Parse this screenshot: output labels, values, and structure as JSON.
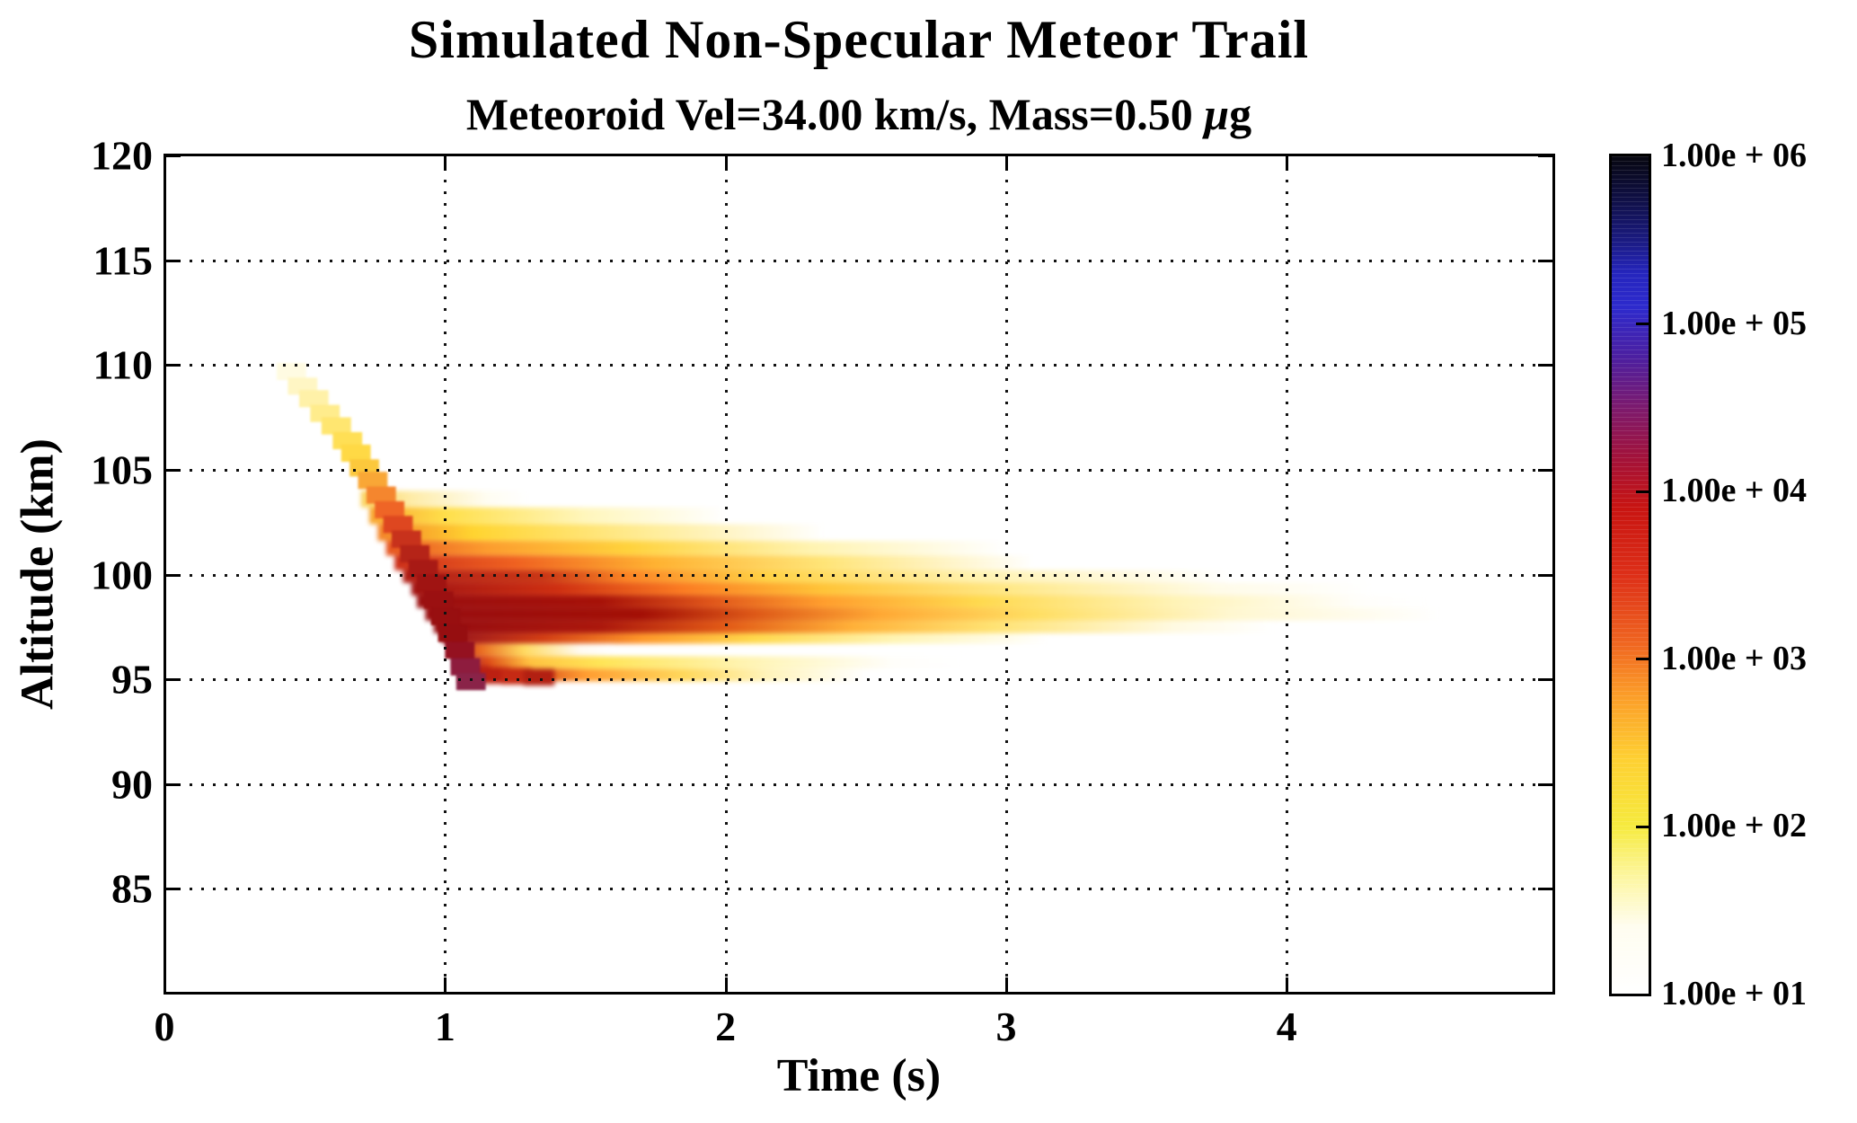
{
  "chart_data": {
    "type": "heatmap",
    "title": "Simulated Non-Specular Meteor Trail",
    "subtitle_pre": "Meteoroid Vel=34.00 km/s, Mass=0.50 ",
    "subtitle_mu": "μ",
    "subtitle_post": "g",
    "xlabel": "Time (s)",
    "ylabel": "Altitude (km)",
    "xlim": [
      0,
      4.95
    ],
    "ylim": [
      80,
      120
    ],
    "grid": "dotted",
    "xticks": [
      {
        "v": 0,
        "label": "0"
      },
      {
        "v": 1,
        "label": "1"
      },
      {
        "v": 2,
        "label": "2"
      },
      {
        "v": 3,
        "label": "3"
      },
      {
        "v": 4,
        "label": "4"
      }
    ],
    "yticks": [
      {
        "v": 85,
        "label": "85"
      },
      {
        "v": 90,
        "label": "90"
      },
      {
        "v": 95,
        "label": "95"
      },
      {
        "v": 100,
        "label": "100"
      },
      {
        "v": 105,
        "label": "105"
      },
      {
        "v": 110,
        "label": "110"
      },
      {
        "v": 115,
        "label": "115"
      },
      {
        "v": 120,
        "label": "120"
      }
    ],
    "colorbar": {
      "scale": "log",
      "min": 10,
      "max": 1000000,
      "tick_labels": [
        "1.00e + 06",
        "1.00e + 05",
        "1.00e + 04",
        "1.00e + 03",
        "1.00e + 02",
        "1.00e + 01"
      ],
      "cmap_stops": [
        [
          0.0,
          "#ffffff"
        ],
        [
          0.08,
          "#fffdf0"
        ],
        [
          0.14,
          "#fdf6a0"
        ],
        [
          0.2,
          "#f6ea3e"
        ],
        [
          0.28,
          "#fed032"
        ],
        [
          0.36,
          "#fb9a28"
        ],
        [
          0.42,
          "#ef6420"
        ],
        [
          0.5,
          "#dd2f18"
        ],
        [
          0.58,
          "#c81411"
        ],
        [
          0.64,
          "#a2123a"
        ],
        [
          0.7,
          "#7c1a6e"
        ],
        [
          0.76,
          "#4c1fa0"
        ],
        [
          0.82,
          "#2d2acd"
        ],
        [
          0.86,
          "#2525bd"
        ],
        [
          0.9,
          "#1a1a80"
        ],
        [
          0.95,
          "#0f0f44"
        ],
        [
          1.0,
          "#070710"
        ]
      ]
    },
    "trail": {
      "step_w": 0.105,
      "step_h": 0.82,
      "steps": [
        [
          0.4,
          110.1,
          "#fffbe2"
        ],
        [
          0.44,
          109.4,
          "#fff6c4"
        ],
        [
          0.48,
          108.8,
          "#fff1a8"
        ],
        [
          0.52,
          108.1,
          "#ffec8c"
        ],
        [
          0.56,
          107.5,
          "#ffe670"
        ],
        [
          0.6,
          106.8,
          "#ffdf55"
        ],
        [
          0.63,
          106.2,
          "#ffd945"
        ],
        [
          0.66,
          105.5,
          "#fcc83c"
        ],
        [
          0.69,
          104.9,
          "#f9a736"
        ],
        [
          0.72,
          104.2,
          "#f5862e"
        ],
        [
          0.75,
          103.5,
          "#ef6526"
        ],
        [
          0.78,
          102.8,
          "#de4720"
        ],
        [
          0.81,
          102.1,
          "#c8321c"
        ],
        [
          0.84,
          101.4,
          "#b52418"
        ],
        [
          0.87,
          100.7,
          "#a81a15"
        ],
        [
          0.9,
          100.0,
          "#a01412"
        ],
        [
          0.925,
          99.2,
          "#9b1011"
        ],
        [
          0.95,
          98.4,
          "#980f10"
        ],
        [
          0.975,
          97.6,
          "#960e10"
        ],
        [
          1.0,
          96.8,
          "#941120"
        ],
        [
          1.02,
          96.0,
          "#8e1c3e"
        ],
        [
          1.04,
          95.3,
          "#8a2348"
        ]
      ],
      "blob_cells": [
        [
          1.05,
          95.62,
          "#a01524"
        ],
        [
          1.12,
          95.58,
          "#bc2012"
        ],
        [
          1.2,
          95.55,
          "#c62a14"
        ],
        [
          1.28,
          95.5,
          "#b22012"
        ]
      ],
      "blob_w": 0.11,
      "blob_h": 0.8,
      "rows": [
        {
          "a": [
            104.0,
            103.2
          ],
          "stops": [
            [
              0.7,
              "#fad35e"
            ],
            [
              0.88,
              "#feeca8"
            ],
            [
              1.15,
              "#fffdf2"
            ],
            [
              1.3,
              "#ffffff"
            ]
          ]
        },
        {
          "a": [
            103.2,
            102.4
          ],
          "stops": [
            [
              0.73,
              "#f8a530"
            ],
            [
              1.0,
              "#ffdf4a"
            ],
            [
              1.5,
              "#fff6bc"
            ],
            [
              2.0,
              "#ffffff"
            ]
          ]
        },
        {
          "a": [
            102.4,
            101.6
          ],
          "stops": [
            [
              0.76,
              "#f38328"
            ],
            [
              1.1,
              "#ffd430"
            ],
            [
              1.75,
              "#ffed9c"
            ],
            [
              2.35,
              "#ffffff"
            ]
          ]
        },
        {
          "a": [
            101.6,
            100.9
          ],
          "stops": [
            [
              0.79,
              "#e65420"
            ],
            [
              1.15,
              "#fc9c2e"
            ],
            [
              1.65,
              "#ffd23c"
            ],
            [
              2.3,
              "#fff3b0"
            ],
            [
              3.0,
              "#ffffff"
            ]
          ]
        },
        {
          "a": [
            100.9,
            100.2
          ],
          "stops": [
            [
              0.82,
              "#cc2f1a"
            ],
            [
              1.25,
              "#ef6120"
            ],
            [
              1.75,
              "#ffb231"
            ],
            [
              2.35,
              "#ffe477"
            ],
            [
              3.1,
              "#ffffff"
            ]
          ]
        },
        {
          "a": [
            100.2,
            99.6
          ],
          "stops": [
            [
              0.85,
              "#b22018"
            ],
            [
              1.35,
              "#c93615"
            ],
            [
              1.65,
              "#fb8424"
            ],
            [
              2.15,
              "#ffd245"
            ],
            [
              2.9,
              "#fff2b0"
            ],
            [
              3.8,
              "#ffffff"
            ]
          ]
        },
        {
          "a": [
            99.6,
            99.0
          ],
          "stops": [
            [
              0.88,
              "#a21514"
            ],
            [
              1.4,
              "#ce2f11"
            ],
            [
              1.85,
              "#fb7c22"
            ],
            [
              2.35,
              "#ffc438"
            ],
            [
              3.0,
              "#ffe887"
            ],
            [
              3.75,
              "#fffbe8"
            ],
            [
              4.3,
              "#ffffff"
            ]
          ]
        },
        {
          "a": [
            99.0,
            98.4
          ],
          "stops": [
            [
              0.9,
              "#9b0f10"
            ],
            [
              1.55,
              "#a61108"
            ],
            [
              1.95,
              "#e0561a"
            ],
            [
              2.35,
              "#ff9e2d"
            ],
            [
              2.9,
              "#ffd94e"
            ],
            [
              3.6,
              "#fff3b6"
            ],
            [
              4.25,
              "#fffefa"
            ],
            [
              4.5,
              "#ffffff"
            ]
          ]
        },
        {
          "a": [
            98.4,
            97.8
          ],
          "stops": [
            [
              0.93,
              "#990e10"
            ],
            [
              1.7,
              "#a30f05"
            ],
            [
              2.1,
              "#dd5817"
            ],
            [
              2.55,
              "#ffa834"
            ],
            [
              3.1,
              "#ffde62"
            ],
            [
              3.8,
              "#fff7d0"
            ],
            [
              4.55,
              "#ffffff"
            ]
          ]
        },
        {
          "a": [
            97.8,
            97.2
          ],
          "stops": [
            [
              0.96,
              "#970d10"
            ],
            [
              1.55,
              "#ab170c"
            ],
            [
              2.0,
              "#e25a16"
            ],
            [
              2.45,
              "#ffb038"
            ],
            [
              2.95,
              "#ffe272"
            ],
            [
              3.6,
              "#fffae2"
            ],
            [
              3.95,
              "#ffffff"
            ]
          ]
        },
        {
          "a": [
            97.2,
            96.7
          ],
          "stops": [
            [
              0.99,
              "#93101c"
            ],
            [
              1.35,
              "#d23d13"
            ],
            [
              1.7,
              "#fe9628"
            ],
            [
              2.1,
              "#ffd84a"
            ],
            [
              2.6,
              "#fff4b2"
            ],
            [
              3.15,
              "#ffffff"
            ]
          ]
        },
        {
          "a": [
            96.7,
            96.1
          ],
          "stops": [
            [
              1.02,
              "#8e1a38"
            ],
            [
              1.12,
              "#e8661e"
            ],
            [
              1.28,
              "#ffd95e"
            ],
            [
              1.48,
              "#fffaf0"
            ],
            [
              1.6,
              "#ffffff"
            ]
          ]
        },
        {
          "a": [
            96.1,
            95.5
          ],
          "stops": [
            [
              1.03,
              "#8c2050"
            ],
            [
              1.15,
              "#dd4a16"
            ],
            [
              1.3,
              "#ffc140"
            ],
            [
              1.55,
              "#ffe455"
            ],
            [
              2.05,
              "#fff3ae"
            ],
            [
              2.6,
              "#fffefa"
            ],
            [
              2.85,
              "#ffffff"
            ]
          ]
        },
        {
          "a": [
            95.5,
            94.9
          ],
          "stops": [
            [
              1.06,
              "#97122a"
            ],
            [
              1.22,
              "#c22410"
            ],
            [
              1.5,
              "#ff9c30"
            ],
            [
              1.85,
              "#ffd75a"
            ],
            [
              2.15,
              "#fff3ba"
            ],
            [
              2.5,
              "#ffffff"
            ]
          ]
        }
      ]
    }
  }
}
